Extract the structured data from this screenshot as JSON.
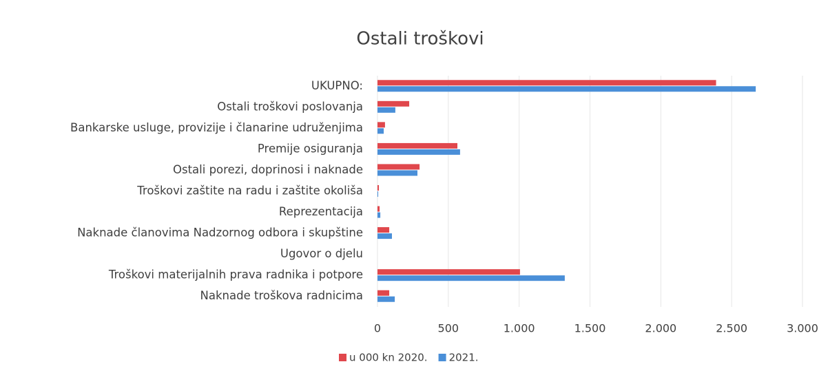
{
  "chart_data": {
    "type": "hbar",
    "title": "Ostali troškovi",
    "categories": [
      "UKUPNO:",
      "Ostali troškovi poslovanja",
      "Bankarske usluge, provizije i članarine udruženjima",
      "Premije osiguranja",
      "Ostali porezi, doprinosi i naknade",
      "Troškovi zaštite na radu i zaštite okoliša",
      "Reprezentacija",
      "Naknade članovima Nadzornog odbora i skupštine",
      "Ugovor o djelu",
      "Troškovi materijalnih prava radnika i potpore",
      "Naknade troškova radnicima"
    ],
    "series": [
      {
        "name": "u 000 kn 2020.",
        "color": "#e0474c",
        "values": [
          2390,
          224,
          53,
          564,
          297,
          10,
          15,
          83,
          0,
          1006,
          83
        ]
      },
      {
        "name": "2021.",
        "color": "#4a8fd8",
        "values": [
          2670,
          126,
          44,
          583,
          282,
          5,
          20,
          102,
          0,
          1322,
          122
        ]
      }
    ],
    "xlim": [
      0,
      3000
    ],
    "xticks": [
      0,
      500,
      {
        "value": 1000,
        "label": "1.000"
      },
      {
        "value": 1500,
        "label": "1.500"
      },
      {
        "value": 2000,
        "label": "2.000"
      },
      {
        "value": 2500,
        "label": "2.500"
      },
      {
        "value": 3000,
        "label": "3.000"
      }
    ],
    "grid": true,
    "legend": "bottom"
  }
}
